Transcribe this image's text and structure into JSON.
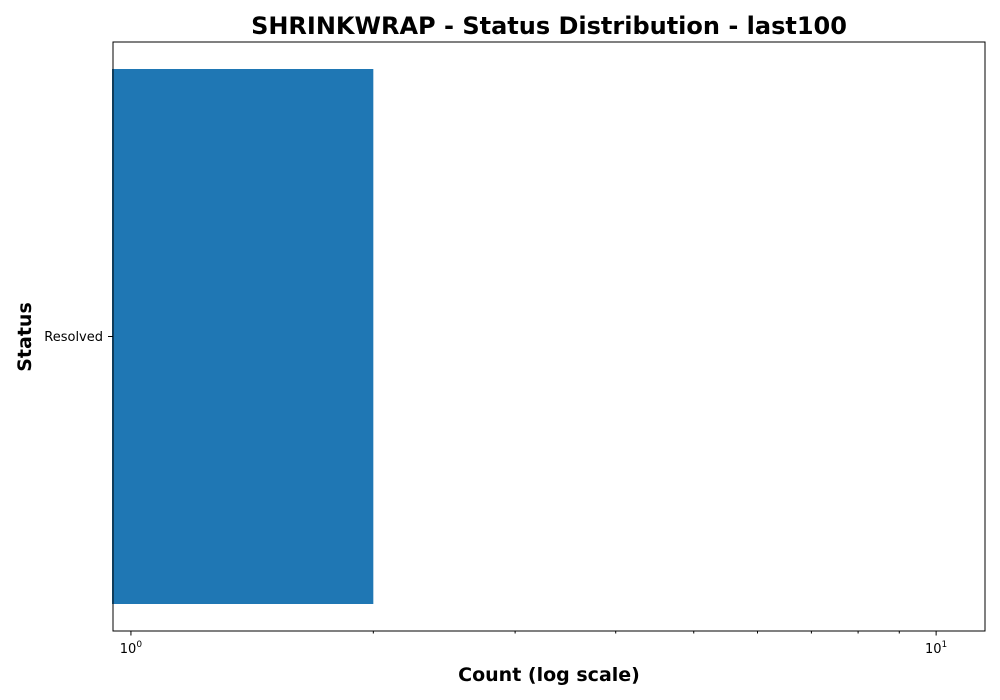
{
  "chart_data": {
    "type": "bar",
    "orientation": "horizontal",
    "title": "SHRINKWRAP - Status Distribution - last100",
    "xlabel": "Count (log scale)",
    "ylabel": "Status",
    "x_scale": "log",
    "xlim": [
      0.95,
      11.5
    ],
    "categories": [
      "Resolved"
    ],
    "values": [
      2
    ],
    "x_major_ticks": [
      {
        "value": 1,
        "base": "10",
        "exponent": "0"
      },
      {
        "value": 10,
        "base": "10",
        "exponent": "1"
      }
    ],
    "x_minor_ticks": [
      2,
      3,
      4,
      5,
      6,
      7,
      8,
      9
    ],
    "grid": false,
    "legend": "none",
    "colors": {
      "bar": "#1f77b4",
      "frame": "#000000",
      "background": "#ffffff"
    }
  }
}
